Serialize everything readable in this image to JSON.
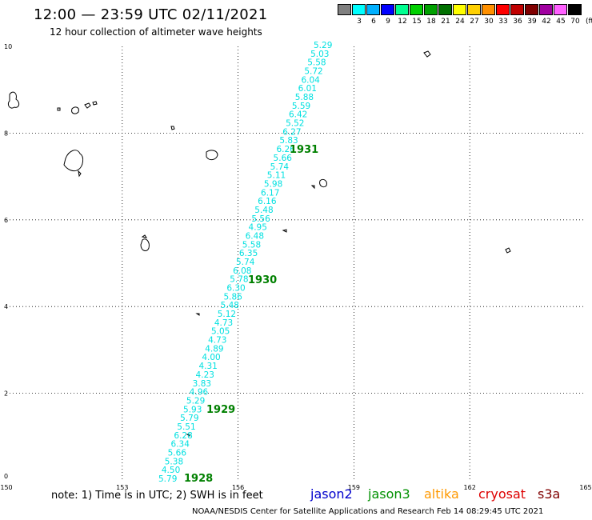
{
  "header": {
    "title": "12:00 — 23:59 UTC 02/11/2021",
    "subtitle": "12 hour collection of altimeter wave heights"
  },
  "legend": {
    "unit": "(ft)",
    "items": [
      {
        "label": "",
        "color": "#808080"
      },
      {
        "label": "3",
        "color": "#00ffff"
      },
      {
        "label": "6",
        "color": "#00b0ff"
      },
      {
        "label": "9",
        "color": "#0000ff"
      },
      {
        "label": "12",
        "color": "#00ff90"
      },
      {
        "label": "15",
        "color": "#00d000"
      },
      {
        "label": "18",
        "color": "#00a000"
      },
      {
        "label": "21",
        "color": "#007000"
      },
      {
        "label": "24",
        "color": "#ffff00"
      },
      {
        "label": "27",
        "color": "#ffd000"
      },
      {
        "label": "30",
        "color": "#ff9000"
      },
      {
        "label": "33",
        "color": "#ff0000"
      },
      {
        "label": "36",
        "color": "#c00000"
      },
      {
        "label": "39",
        "color": "#800000"
      },
      {
        "label": "42",
        "color": "#a000a0"
      },
      {
        "label": "45",
        "color": "#ff60ff"
      },
      {
        "label": "70",
        "color": "#000000"
      }
    ]
  },
  "axes": {
    "x_ticks": [
      "150",
      "153",
      "156",
      "159",
      "162",
      "165"
    ],
    "y_ticks": [
      "0",
      "2",
      "4",
      "6",
      "8",
      "10"
    ]
  },
  "track": {
    "color": "#00e0e0",
    "values": [
      "5.79",
      "4.50",
      "5.38",
      "5.66",
      "6.34",
      "6.28",
      "5.51",
      "5.79",
      "5.93",
      "5.29",
      "4.96",
      "3.83",
      "4.23",
      "4.31",
      "4.00",
      "4.89",
      "4.73",
      "5.05",
      "4.73",
      "5.12",
      "5.48",
      "5.86",
      "6.30",
      "5.78",
      "6.08",
      "5.74",
      "6.35",
      "5.58",
      "6.48",
      "4.95",
      "5.56",
      "5.48",
      "6.16",
      "6.17",
      "5.98",
      "5.11",
      "5.74",
      "5.66",
      "6.26",
      "5.83",
      "6.27",
      "5.52",
      "6.42",
      "5.59",
      "5.88",
      "6.01",
      "6.04",
      "5.72",
      "5.58",
      "5.03",
      "5.29"
    ]
  },
  "passes": {
    "color": "#008000",
    "items": [
      "1928",
      "1929",
      "1930",
      "1931"
    ]
  },
  "note": "note: 1) Time is in UTC; 2) SWH is in feet",
  "satellites": [
    {
      "name": "jason2",
      "color": "#0000cc"
    },
    {
      "name": "jason3",
      "color": "#009000"
    },
    {
      "name": "altika",
      "color": "#ff9900"
    },
    {
      "name": "cryosat",
      "color": "#dd0000"
    },
    {
      "name": "s3a",
      "color": "#800000"
    }
  ],
  "footer": "NOAA/NESDIS Center for Satellite Applications and Research    Feb 14 08:29:45 UTC 2021"
}
